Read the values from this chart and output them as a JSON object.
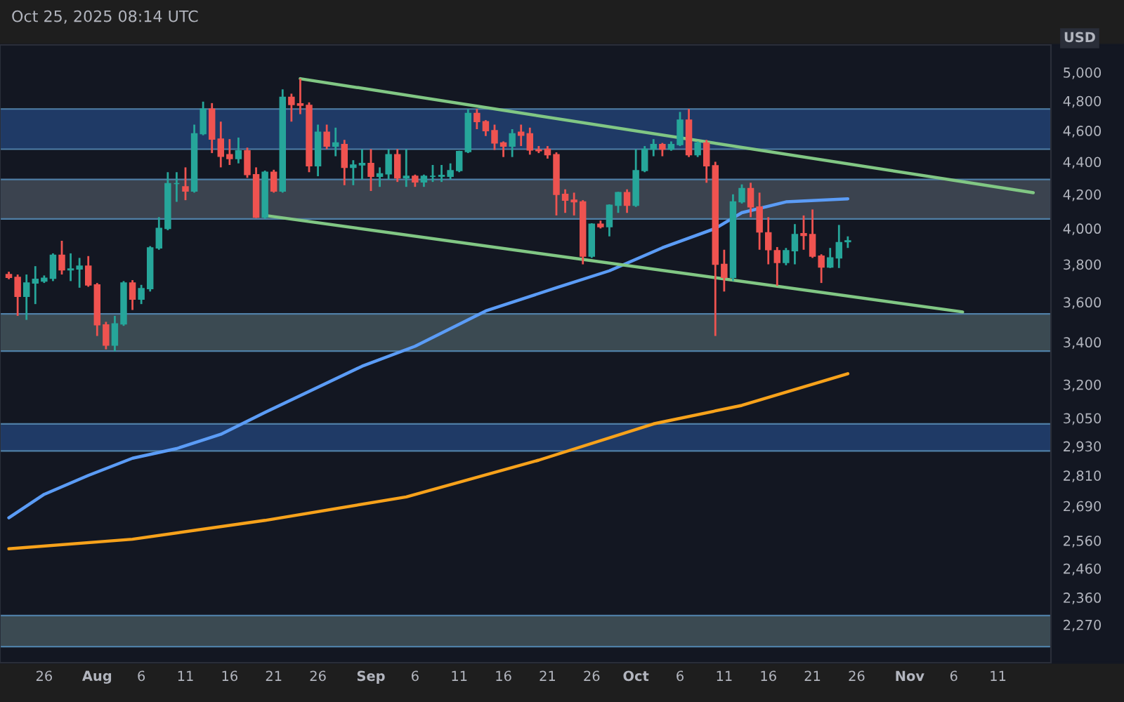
{
  "chart_data": {
    "type": "candlestick",
    "x": [
      "2025-07-22",
      "2025-07-23",
      "2025-07-24",
      "2025-07-25",
      "2025-07-26",
      "2025-07-27",
      "2025-07-28",
      "2025-07-29",
      "2025-07-30",
      "2025-07-31",
      "2025-08-01",
      "2025-08-02",
      "2025-08-03",
      "2025-08-04",
      "2025-08-05",
      "2025-08-06",
      "2025-08-07",
      "2025-08-08",
      "2025-08-09",
      "2025-08-10",
      "2025-08-11",
      "2025-08-12",
      "2025-08-13",
      "2025-08-14",
      "2025-08-15",
      "2025-08-16",
      "2025-08-17",
      "2025-08-18",
      "2025-08-19",
      "2025-08-20",
      "2025-08-21",
      "2025-08-22",
      "2025-08-23",
      "2025-08-24",
      "2025-08-25",
      "2025-08-26",
      "2025-08-27",
      "2025-08-28",
      "2025-08-29",
      "2025-08-30",
      "2025-08-31",
      "2025-09-01",
      "2025-09-02",
      "2025-09-03",
      "2025-09-04",
      "2025-09-05",
      "2025-09-06",
      "2025-09-07",
      "2025-09-08",
      "2025-09-09",
      "2025-09-10",
      "2025-09-11",
      "2025-09-12",
      "2025-09-13",
      "2025-09-14",
      "2025-09-15",
      "2025-09-16",
      "2025-09-17",
      "2025-09-18",
      "2025-09-19",
      "2025-09-20",
      "2025-09-21",
      "2025-09-22",
      "2025-09-23",
      "2025-09-24",
      "2025-09-25",
      "2025-09-26",
      "2025-09-27",
      "2025-09-28",
      "2025-09-29",
      "2025-09-30",
      "2025-10-01",
      "2025-10-02",
      "2025-10-03",
      "2025-10-04",
      "2025-10-05",
      "2025-10-06",
      "2025-10-07",
      "2025-10-08",
      "2025-10-09",
      "2025-10-10",
      "2025-10-11",
      "2025-10-12",
      "2025-10-13",
      "2025-10-14",
      "2025-10-15",
      "2025-10-16",
      "2025-10-17",
      "2025-10-18",
      "2025-10-19",
      "2025-10-20",
      "2025-10-21",
      "2025-10-22",
      "2025-10-23",
      "2025-10-24",
      "2025-10-25"
    ],
    "ohlc": [
      [
        3745,
        3760,
        3720,
        3730
      ],
      [
        3730,
        3745,
        3530,
        3630
      ],
      [
        3630,
        3745,
        3510,
        3700
      ],
      [
        3700,
        3790,
        3590,
        3720
      ],
      [
        3710,
        3740,
        3700,
        3725
      ],
      [
        3725,
        3860,
        3710,
        3850
      ],
      [
        3850,
        3930,
        3745,
        3770
      ],
      [
        3770,
        3860,
        3710,
        3775
      ],
      [
        3775,
        3835,
        3675,
        3790
      ],
      [
        3790,
        3845,
        3680,
        3690
      ],
      [
        3690,
        3700,
        3430,
        3485
      ],
      [
        3485,
        3500,
        3365,
        3385
      ],
      [
        3385,
        3530,
        3355,
        3490
      ],
      [
        3490,
        3710,
        3480,
        3700
      ],
      [
        3700,
        3715,
        3560,
        3615
      ],
      [
        3615,
        3690,
        3590,
        3670
      ],
      [
        3670,
        3900,
        3655,
        3890
      ],
      [
        3890,
        4065,
        3880,
        4000
      ],
      [
        4000,
        4335,
        3990,
        4265
      ],
      [
        4265,
        4335,
        4155,
        4265
      ],
      [
        4245,
        4365,
        4165,
        4220
      ],
      [
        4220,
        4640,
        4210,
        4580
      ],
      [
        4580,
        4795,
        4570,
        4745
      ],
      [
        4745,
        4785,
        4455,
        4545
      ],
      [
        4545,
        4660,
        4365,
        4435
      ],
      [
        4445,
        4545,
        4380,
        4420
      ],
      [
        4420,
        4555,
        4390,
        4470
      ],
      [
        4470,
        4490,
        4300,
        4320
      ],
      [
        4320,
        4365,
        4060,
        4065
      ],
      [
        4065,
        4345,
        4055,
        4335
      ],
      [
        4335,
        4350,
        4210,
        4220
      ],
      [
        4220,
        4880,
        4210,
        4825
      ],
      [
        4825,
        4850,
        4660,
        4775
      ],
      [
        4780,
        4955,
        4710,
        4770
      ],
      [
        4770,
        4790,
        4335,
        4375
      ],
      [
        4375,
        4640,
        4310,
        4590
      ],
      [
        4590,
        4640,
        4480,
        4500
      ],
      [
        4500,
        4620,
        4435,
        4520
      ],
      [
        4510,
        4540,
        4255,
        4365
      ],
      [
        4365,
        4410,
        4255,
        4380
      ],
      [
        4380,
        4480,
        4290,
        4390
      ],
      [
        4390,
        4480,
        4220,
        4310
      ],
      [
        4310,
        4365,
        4245,
        4325
      ],
      [
        4325,
        4480,
        4290,
        4445
      ],
      [
        4445,
        4480,
        4275,
        4300
      ],
      [
        4300,
        4480,
        4245,
        4310
      ],
      [
        4310,
        4320,
        4245,
        4275
      ],
      [
        4275,
        4320,
        4245,
        4310
      ],
      [
        4310,
        4380,
        4275,
        4310
      ],
      [
        4310,
        4380,
        4275,
        4315
      ],
      [
        4310,
        4390,
        4290,
        4345
      ],
      [
        4345,
        4470,
        4335,
        4465
      ],
      [
        4465,
        4745,
        4455,
        4715
      ],
      [
        4715,
        4745,
        4610,
        4660
      ],
      [
        4660,
        4670,
        4565,
        4600
      ],
      [
        4600,
        4640,
        4475,
        4520
      ],
      [
        4520,
        4530,
        4430,
        4500
      ],
      [
        4500,
        4610,
        4430,
        4580
      ],
      [
        4590,
        4640,
        4500,
        4570
      ],
      [
        4580,
        4620,
        4445,
        4475
      ],
      [
        4475,
        4500,
        4455,
        4470
      ],
      [
        4480,
        4500,
        4420,
        4445
      ],
      [
        4445,
        4460,
        4075,
        4200
      ],
      [
        4200,
        4230,
        4090,
        4165
      ],
      [
        4165,
        4210,
        4075,
        4155
      ],
      [
        4155,
        4165,
        3800,
        3845
      ],
      [
        3845,
        4030,
        3835,
        4025
      ],
      [
        4025,
        4045,
        4000,
        4010
      ],
      [
        4010,
        4140,
        3955,
        4135
      ],
      [
        4135,
        4215,
        4090,
        4210
      ],
      [
        4210,
        4230,
        4090,
        4135
      ],
      [
        4135,
        4480,
        4125,
        4345
      ],
      [
        4345,
        4500,
        4335,
        4480
      ],
      [
        4480,
        4545,
        4435,
        4510
      ],
      [
        4510,
        4520,
        4435,
        4480
      ],
      [
        4480,
        4530,
        4470,
        4510
      ],
      [
        4510,
        4725,
        4500,
        4670
      ],
      [
        4670,
        4745,
        4430,
        4445
      ],
      [
        4445,
        4530,
        4430,
        4520
      ],
      [
        4520,
        4540,
        4270,
        4375
      ],
      [
        4375,
        4400,
        3430,
        3800
      ],
      [
        3800,
        3880,
        3655,
        3730
      ],
      [
        3730,
        4200,
        3710,
        4155
      ],
      [
        4155,
        4260,
        4145,
        4235
      ],
      [
        4235,
        4270,
        4065,
        4125
      ],
      [
        4125,
        4210,
        3880,
        3980
      ],
      [
        3975,
        4065,
        3800,
        3880
      ],
      [
        3875,
        3895,
        3685,
        3810
      ],
      [
        3810,
        3890,
        3795,
        3875
      ],
      [
        3875,
        4025,
        3800,
        3965
      ],
      [
        3970,
        4075,
        3880,
        3960
      ],
      [
        3965,
        4110,
        3835,
        3845
      ],
      [
        3845,
        3855,
        3700,
        3785
      ],
      [
        3785,
        3890,
        3780,
        3835
      ],
      [
        3835,
        4020,
        3780,
        3920
      ],
      [
        3925,
        3955,
        3890,
        3930
      ]
    ],
    "colors": [
      "#ef5350",
      "#ef5350",
      "#26a69a",
      "#26a69a",
      "#26a69a",
      "#26a69a",
      "#ef5350",
      "#26a69a",
      "#26a69a",
      "#ef5350",
      "#ef5350",
      "#ef5350",
      "#26a69a",
      "#26a69a",
      "#ef5350",
      "#26a69a",
      "#26a69a",
      "#26a69a",
      "#26a69a",
      "#26a69a",
      "#ef5350",
      "#26a69a",
      "#26a69a",
      "#ef5350",
      "#ef5350",
      "#ef5350",
      "#26a69a",
      "#ef5350",
      "#ef5350",
      "#26a69a",
      "#ef5350",
      "#26a69a",
      "#ef5350",
      "#ef5350",
      "#ef5350",
      "#26a69a",
      "#ef5350",
      "#26a69a",
      "#ef5350",
      "#26a69a",
      "#26a69a",
      "#ef5350",
      "#26a69a",
      "#26a69a",
      "#ef5350",
      "#26a69a",
      "#ef5350",
      "#26a69a",
      "#26a69a",
      "#26a69a",
      "#26a69a",
      "#26a69a",
      "#26a69a",
      "#ef5350",
      "#ef5350",
      "#ef5350",
      "#ef5350",
      "#26a69a",
      "#ef5350",
      "#ef5350",
      "#ef5350",
      "#ef5350",
      "#ef5350",
      "#ef5350",
      "#ef5350",
      "#ef5350",
      "#26a69a",
      "#ef5350",
      "#26a69a",
      "#26a69a",
      "#ef5350",
      "#26a69a",
      "#26a69a",
      "#26a69a",
      "#ef5350",
      "#26a69a",
      "#26a69a",
      "#ef5350",
      "#26a69a",
      "#ef5350",
      "#ef5350",
      "#ef5350",
      "#26a69a",
      "#26a69a",
      "#ef5350",
      "#ef5350",
      "#ef5350",
      "#ef5350",
      "#26a69a",
      "#26a69a",
      "#ef5350",
      "#ef5350",
      "#ef5350",
      "#26a69a",
      "#26a69a",
      "#26a69a"
    ],
    "series": [
      {
        "type": "line",
        "x": [
          "2025-07-22",
          "2025-07-26",
          "2025-07-31",
          "2025-08-05",
          "2025-08-10",
          "2025-08-15",
          "2025-08-20",
          "2025-08-31",
          "2025-09-06",
          "2025-09-14",
          "2025-09-22",
          "2025-09-28",
          "2025-10-04",
          "2025-10-10",
          "2025-10-13",
          "2025-10-18",
          "2025-10-25"
        ],
        "values": [
          2645,
          2735,
          2810,
          2880,
          2920,
          2980,
          3075,
          3285,
          3380,
          3555,
          3675,
          3765,
          3891,
          4000,
          4091,
          4155,
          4173
        ],
        "color": "#5b9cf6"
      },
      {
        "type": "line",
        "x": [
          "2025-07-22",
          "2025-08-05",
          "2025-08-20",
          "2025-09-05",
          "2025-09-20",
          "2025-10-03",
          "2025-10-13",
          "2025-10-25"
        ],
        "values": [
          2530,
          2565,
          2635,
          2725,
          2872,
          3025,
          3106,
          3250
        ],
        "color": "#f7a21b"
      },
      {
        "type": "line",
        "x": [
          "2025-08-24",
          "2025-11-15"
        ],
        "values": [
          4955,
          4210
        ],
        "color": "#81c784"
      },
      {
        "type": "line",
        "x": [
          "2025-08-20",
          "2025-11-07"
        ],
        "values": [
          4075,
          3550
        ],
        "color": "#81c784"
      }
    ],
    "bands": [
      {
        "axis": "y",
        "from": 4480,
        "to": 4745,
        "color": "#1f3a66"
      },
      {
        "axis": "y",
        "from": 4055,
        "to": 4290,
        "color": "#3b434f"
      },
      {
        "axis": "y",
        "from": 3357,
        "to": 3540,
        "color": "#3b4a52"
      },
      {
        "axis": "y",
        "from": 2910,
        "to": 3025,
        "color": "#1f3a66"
      },
      {
        "axis": "y",
        "from": 2200,
        "to": 2300,
        "color": "#3b4a52"
      }
    ],
    "log": true,
    "ylim": [
      2150,
      5200
    ],
    "yticks": [
      {
        "value": 5000,
        "label": "5,000"
      },
      {
        "value": 4800,
        "label": "4,800"
      },
      {
        "value": 4600,
        "label": "4,600"
      },
      {
        "value": 4400,
        "label": "4,400"
      },
      {
        "value": 4200,
        "label": "4,200"
      },
      {
        "value": 4000,
        "label": "4,000"
      },
      {
        "value": 3800,
        "label": "3,800"
      },
      {
        "value": 3600,
        "label": "3,600"
      },
      {
        "value": 3400,
        "label": "3,400"
      },
      {
        "value": 3200,
        "label": "3,200"
      },
      {
        "value": 3050,
        "label": "3,050"
      },
      {
        "value": 2930,
        "label": "2,930"
      },
      {
        "value": 2810,
        "label": "2,810"
      },
      {
        "value": 2690,
        "label": "2,690"
      },
      {
        "value": 2560,
        "label": "2,560"
      },
      {
        "value": 2460,
        "label": "2,460"
      },
      {
        "value": 2360,
        "label": "2,360"
      },
      {
        "value": 2270,
        "label": "2,270"
      }
    ],
    "xlim": [
      "2025-07-21",
      "2025-11-17"
    ],
    "xticks": [
      {
        "value": "2025-07-26",
        "label": "26"
      },
      {
        "value": "2025-08-01",
        "label": "Aug"
      },
      {
        "value": "2025-08-06",
        "label": "6"
      },
      {
        "value": "2025-08-11",
        "label": "11"
      },
      {
        "value": "2025-08-16",
        "label": "16"
      },
      {
        "value": "2025-08-21",
        "label": "21"
      },
      {
        "value": "2025-08-26",
        "label": "26"
      },
      {
        "value": "2025-09-01",
        "label": "Sep"
      },
      {
        "value": "2025-09-06",
        "label": "6"
      },
      {
        "value": "2025-09-11",
        "label": "11"
      },
      {
        "value": "2025-09-16",
        "label": "16"
      },
      {
        "value": "2025-09-21",
        "label": "21"
      },
      {
        "value": "2025-09-26",
        "label": "26"
      },
      {
        "value": "2025-10-01",
        "label": "Oct"
      },
      {
        "value": "2025-10-06",
        "label": "6"
      },
      {
        "value": "2025-10-11",
        "label": "11"
      },
      {
        "value": "2025-10-16",
        "label": "16"
      },
      {
        "value": "2025-10-21",
        "label": "21"
      },
      {
        "value": "2025-10-26",
        "label": "26"
      },
      {
        "value": "2025-11-01",
        "label": "Nov"
      },
      {
        "value": "2025-11-06",
        "label": "6"
      },
      {
        "value": "2025-11-11",
        "label": "11"
      }
    ],
    "ylabel": "USD",
    "annotations": [
      "Oct 25, 2025 08:14 UTC"
    ]
  }
}
